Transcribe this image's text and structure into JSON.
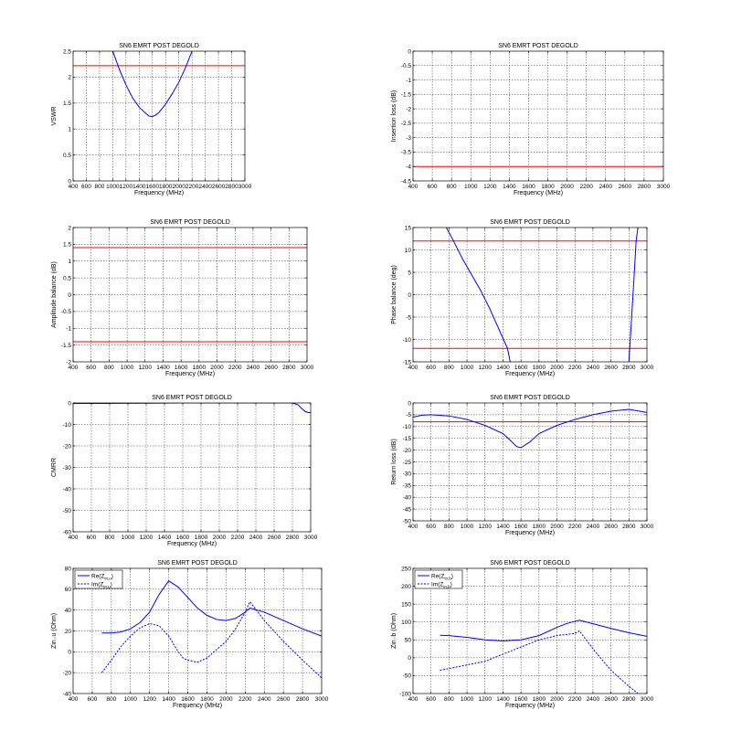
{
  "chart_data": [
    {
      "type": "line",
      "title": "SN6 EMRT POST DEGOLD",
      "xlabel": "Frequency (MHz)",
      "ylabel": "VSWR",
      "xlim": [
        400,
        3000
      ],
      "ylim": [
        0,
        2.5
      ],
      "xticks": [
        400,
        600,
        800,
        1000,
        1200,
        1400,
        1600,
        1800,
        2000,
        2200,
        2400,
        2600,
        2800,
        3000
      ],
      "yticks": [
        0,
        0.5,
        1,
        1.5,
        2,
        2.5
      ],
      "ytick_labels": [
        "0",
        "0.5",
        "1",
        "1.5",
        "2",
        "2.5"
      ],
      "grid": true,
      "limit_lines": [
        2.22
      ],
      "series": [
        {
          "style": "solid",
          "x": [
            1000,
            1100,
            1200,
            1300,
            1400,
            1500,
            1550,
            1600,
            1650,
            1700,
            1800,
            1900,
            2000,
            2100,
            2200
          ],
          "y": [
            2.5,
            2.15,
            1.85,
            1.6,
            1.42,
            1.3,
            1.25,
            1.24,
            1.27,
            1.32,
            1.48,
            1.68,
            1.9,
            2.18,
            2.5
          ]
        }
      ]
    },
    {
      "type": "line",
      "title": "SN6 EMRT POST DEGOLD",
      "xlabel": "Frequency (MHz)",
      "ylabel": "Insertion loss (dB)",
      "xlim": [
        400,
        3000
      ],
      "ylim": [
        -4.5,
        0
      ],
      "xticks": [
        400,
        600,
        800,
        1000,
        1200,
        1400,
        1600,
        1800,
        2000,
        2200,
        2400,
        2600,
        2800,
        3000
      ],
      "yticks": [
        -4.5,
        -4,
        -3.5,
        -3,
        -2.5,
        -2,
        -1.5,
        -1,
        -0.5,
        0
      ],
      "ytick_labels": [
        "-4.5",
        "-4",
        "-3.5",
        "-3",
        "-2.5",
        "-2",
        "-1.5",
        "-1",
        "-0.5",
        "0"
      ],
      "grid": true,
      "limit_lines": [
        -4
      ],
      "series": []
    },
    {
      "type": "line",
      "title": "SN6 EMRT POST DEGOLD",
      "xlabel": "Frequency (MHz)",
      "ylabel": "Amplitude balance (dB)",
      "xlim": [
        400,
        3000
      ],
      "ylim": [
        -2,
        2
      ],
      "xticks": [
        400,
        600,
        800,
        1000,
        1200,
        1400,
        1600,
        1800,
        2000,
        2200,
        2400,
        2600,
        2800,
        3000
      ],
      "yticks": [
        -2,
        -1.5,
        -1,
        -0.5,
        0,
        0.5,
        1,
        1.5,
        2
      ],
      "ytick_labels": [
        "-2",
        "-1.5",
        "-1",
        "-0.5",
        "0",
        "0.5",
        "1",
        "1.5",
        "2"
      ],
      "grid": true,
      "limit_lines": [
        1.4,
        -1.4
      ],
      "series": []
    },
    {
      "type": "line",
      "title": "SN6 EMRT POST DEGOLD",
      "xlabel": "Frequency (MHz)",
      "ylabel": "Phase balance (deg)",
      "xlim": [
        400,
        3000
      ],
      "ylim": [
        -15,
        15
      ],
      "xticks": [
        400,
        600,
        800,
        1000,
        1200,
        1400,
        1600,
        1800,
        2000,
        2200,
        2400,
        2600,
        2800,
        3000
      ],
      "yticks": [
        -15,
        -10,
        -5,
        0,
        5,
        10,
        15
      ],
      "ytick_labels": [
        "-15",
        "-10",
        "-5",
        "0",
        "5",
        "10",
        "15"
      ],
      "grid": true,
      "limit_lines": [
        12,
        -12
      ],
      "series": [
        {
          "style": "solid",
          "x": [
            770,
            850,
            950,
            1050,
            1150,
            1250,
            1350,
            1450,
            1480
          ],
          "y": [
            15,
            12,
            8,
            4.5,
            1,
            -3,
            -7.5,
            -12,
            -15
          ]
        },
        {
          "style": "solid",
          "x": [
            2800,
            2830,
            2860,
            2880,
            2900
          ],
          "y": [
            -15,
            -5,
            5,
            12,
            15
          ]
        }
      ]
    },
    {
      "type": "line",
      "title": "SN6 EMRT POST DEGOLD",
      "xlabel": "Frequency (MHz)",
      "ylabel": "CMRR",
      "xlim": [
        400,
        3000
      ],
      "ylim": [
        -60,
        0
      ],
      "xticks": [
        400,
        600,
        800,
        1000,
        1200,
        1400,
        1600,
        1800,
        2000,
        2200,
        2400,
        2600,
        2800,
        3000
      ],
      "yticks": [
        -60,
        -50,
        -40,
        -30,
        -20,
        -10,
        0
      ],
      "ytick_labels": [
        "-60",
        "-50",
        "-40",
        "-30",
        "-20",
        "-10",
        "0"
      ],
      "grid": true,
      "limit_lines": [],
      "series": [
        {
          "style": "solid",
          "x": [
            400,
            800,
            1200,
            1600,
            2000,
            2400,
            2800,
            2860,
            2900,
            2940,
            2980,
            3000
          ],
          "y": [
            -0.2,
            -0.2,
            -0.1,
            0,
            0,
            0,
            0,
            -0.8,
            -2.5,
            -4,
            -4.5,
            -4.4
          ]
        }
      ]
    },
    {
      "type": "line",
      "title": "SN6 EMRT POST DEGOLD",
      "xlabel": "Frequency (MHz)",
      "ylabel": "Return loss (dB)",
      "xlim": [
        400,
        3000
      ],
      "ylim": [
        -50,
        0
      ],
      "xticks": [
        400,
        600,
        800,
        1000,
        1200,
        1400,
        1600,
        1800,
        2000,
        2200,
        2400,
        2600,
        2800,
        3000
      ],
      "yticks": [
        -50,
        -45,
        -40,
        -35,
        -30,
        -25,
        -20,
        -15,
        -10,
        -5,
        0
      ],
      "ytick_labels": [
        "-50",
        "-45",
        "-40",
        "-35",
        "-30",
        "-25",
        "-20",
        "-15",
        "-10",
        "-5",
        "0"
      ],
      "grid": true,
      "limit_lines": [
        -8
      ],
      "series": [
        {
          "style": "solid",
          "x": [
            400,
            500,
            600,
            800,
            1000,
            1200,
            1400,
            1500,
            1550,
            1600,
            1700,
            1800,
            2000,
            2200,
            2400,
            2600,
            2800,
            3000
          ],
          "y": [
            -6,
            -5.2,
            -5,
            -5.5,
            -7,
            -9.5,
            -13,
            -16.5,
            -18.5,
            -19,
            -16.5,
            -13,
            -9.5,
            -7,
            -5,
            -3.5,
            -2.7,
            -4
          ]
        }
      ]
    },
    {
      "type": "line",
      "title": "SN6 EMRT POST DEGOLD",
      "xlabel": "Frequency (MHz)",
      "ylabel": "Zin₋u (Ohm)",
      "xlim": [
        400,
        3000
      ],
      "ylim": [
        -40,
        80
      ],
      "xticks": [
        400,
        600,
        800,
        1000,
        1200,
        1400,
        1600,
        1800,
        2000,
        2200,
        2400,
        2600,
        2800,
        3000
      ],
      "yticks": [
        -40,
        -20,
        0,
        20,
        40,
        60,
        80
      ],
      "ytick_labels": [
        "-40",
        "-20",
        "0",
        "20",
        "40",
        "60",
        "80"
      ],
      "grid": true,
      "limit_lines": [],
      "legend": {
        "location": "top-left",
        "entries": [
          "Re(Z",
          "Im(Z"
        ],
        "subscript": "in,u",
        "suffix": ")"
      },
      "series": [
        {
          "style": "solid",
          "x": [
            700,
            800,
            900,
            1000,
            1100,
            1200,
            1300,
            1400,
            1500,
            1600,
            1700,
            1800,
            1900,
            2000,
            2100,
            2200,
            2250,
            2400,
            2600,
            2800,
            3000
          ],
          "y": [
            18,
            18,
            19,
            22,
            28,
            38,
            55,
            68,
            62,
            52,
            42,
            35,
            31,
            30,
            32,
            38,
            42,
            38,
            30,
            22,
            15
          ]
        },
        {
          "style": "dashed",
          "x": [
            700,
            800,
            900,
            1000,
            1100,
            1200,
            1300,
            1400,
            1500,
            1550,
            1600,
            1700,
            1800,
            1900,
            2000,
            2100,
            2200,
            2250,
            2400,
            2600,
            2800,
            3000
          ],
          "y": [
            -20,
            -8,
            5,
            15,
            23,
            27,
            25,
            15,
            0,
            -6,
            -8,
            -10,
            -6,
            2,
            10,
            22,
            38,
            48,
            30,
            10,
            -8,
            -25
          ]
        }
      ]
    },
    {
      "type": "line",
      "title": "SN6 EMRT POST DEGOLD",
      "xlabel": "Frequency (MHz)",
      "ylabel": "Zin₋b (Ohm)",
      "xlim": [
        400,
        3000
      ],
      "ylim": [
        -100,
        250
      ],
      "xticks": [
        400,
        600,
        800,
        1000,
        1200,
        1400,
        1600,
        1800,
        2000,
        2200,
        2400,
        2600,
        2800,
        3000
      ],
      "yticks": [
        -100,
        -50,
        0,
        50,
        100,
        150,
        200,
        250
      ],
      "ytick_labels": [
        "-100",
        "-50",
        "0",
        "50",
        "100",
        "150",
        "200",
        "250"
      ],
      "grid": true,
      "limit_lines": [],
      "legend": {
        "location": "top-left",
        "entries": [
          "Re(Z",
          "Im(Z"
        ],
        "subscript": "in,b",
        "suffix": ")"
      },
      "series": [
        {
          "style": "solid",
          "x": [
            700,
            800,
            1000,
            1200,
            1400,
            1600,
            1800,
            2000,
            2100,
            2200,
            2250,
            2400,
            2600,
            2800,
            3000
          ],
          "y": [
            63,
            62,
            57,
            50,
            47,
            50,
            62,
            85,
            95,
            102,
            105,
            95,
            82,
            70,
            60
          ]
        },
        {
          "style": "dashed",
          "x": [
            700,
            800,
            1000,
            1200,
            1400,
            1600,
            1800,
            2000,
            2200,
            2250,
            2400,
            2600,
            2800,
            2900
          ],
          "y": [
            -35,
            -30,
            -20,
            -10,
            10,
            30,
            50,
            62,
            68,
            75,
            25,
            -35,
            -80,
            -100
          ]
        }
      ]
    }
  ]
}
